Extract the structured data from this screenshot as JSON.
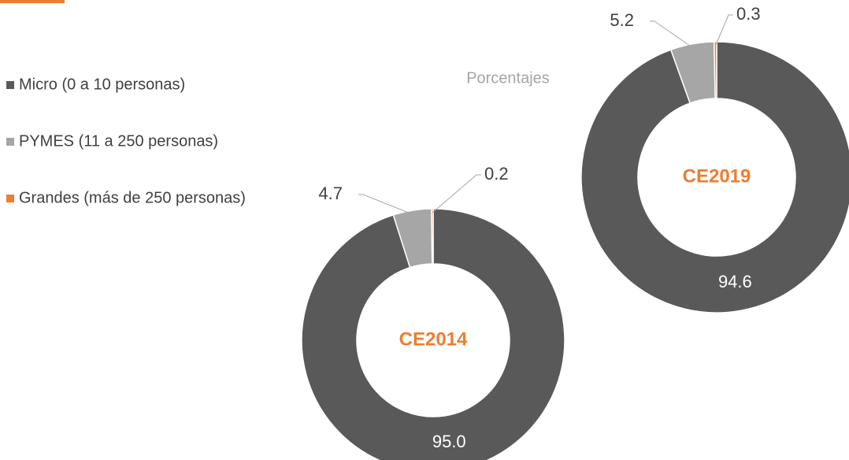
{
  "chart_data": {
    "type": "pie",
    "subtitle": "Porcentajes",
    "categories": [
      "Micro (0 a 10 personas)",
      "PYMES (11 a 250 personas)",
      "Grandes (más de 250 personas)"
    ],
    "colors": [
      "#595959",
      "#a6a6a6",
      "#ed7d31"
    ],
    "center_label_color": "#ed7d31",
    "series": [
      {
        "name": "CE2014",
        "values": [
          95.0,
          4.7,
          0.2
        ],
        "value_labels": [
          "95.0",
          "4.7",
          "0.2"
        ]
      },
      {
        "name": "CE2019",
        "values": [
          94.6,
          5.2,
          0.3
        ],
        "value_labels": [
          "94.6",
          "5.2",
          "0.3"
        ]
      }
    ]
  }
}
